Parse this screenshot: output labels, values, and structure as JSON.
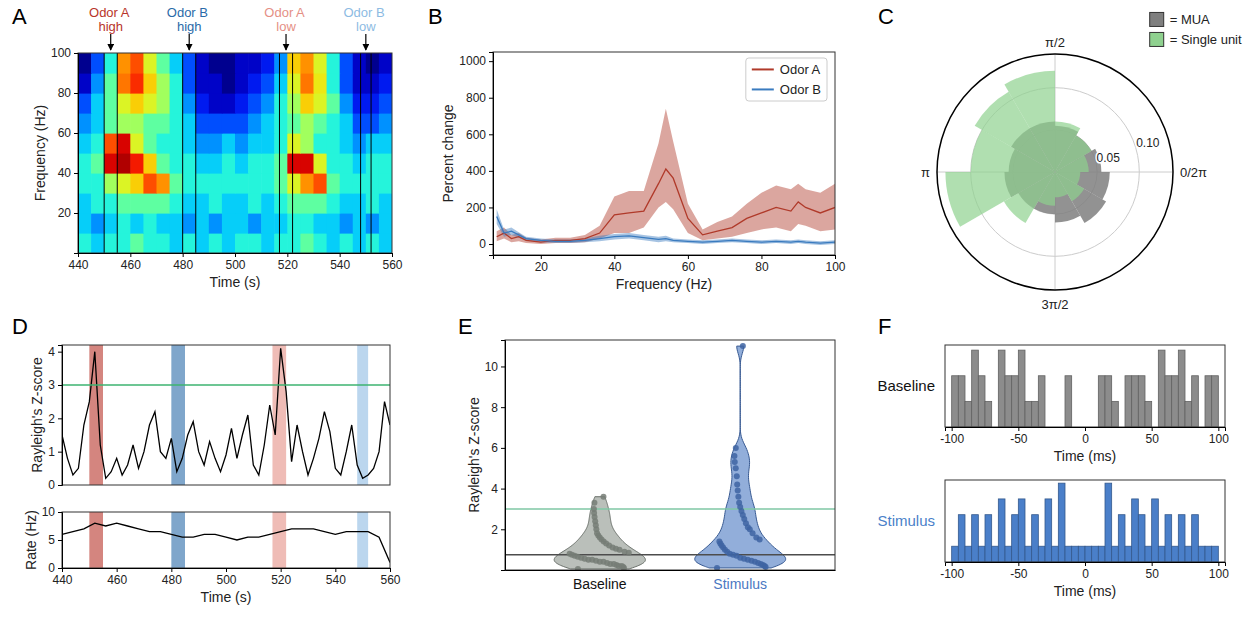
{
  "chart_data": [
    {
      "type": "heatmap",
      "panel_label": "A",
      "x_label": "Time (s)",
      "y_label": "Frequency (Hz)",
      "color": "jet",
      "x_bins": [
        440,
        445,
        450,
        455,
        460,
        465,
        470,
        475,
        480,
        485,
        490,
        495,
        500,
        505,
        510,
        515,
        520,
        525,
        530,
        535,
        540,
        545,
        550,
        555,
        560
      ],
      "y_bins": [
        0,
        10,
        20,
        30,
        40,
        50,
        60,
        70,
        80,
        90,
        100
      ],
      "cells": [
        [
          0.45,
          0.4,
          0.45,
          0.45,
          0.5,
          0.45,
          0.45,
          0.4,
          0.45,
          0.4,
          0.45,
          0.4,
          0.45,
          0.45,
          0.4,
          0.45,
          0.45,
          0.5,
          0.45,
          0.4,
          0.45,
          0.4,
          0.45,
          0.4
        ],
        [
          0.4,
          0.35,
          0.4,
          0.45,
          0.4,
          0.45,
          0.4,
          0.4,
          0.35,
          0.4,
          0.35,
          0.4,
          0.4,
          0.35,
          0.4,
          0.4,
          0.45,
          0.45,
          0.4,
          0.4,
          0.35,
          0.4,
          0.35,
          0.4
        ],
        [
          0.4,
          0.45,
          0.45,
          0.5,
          0.5,
          0.5,
          0.5,
          0.45,
          0.4,
          0.4,
          0.45,
          0.4,
          0.4,
          0.45,
          0.4,
          0.45,
          0.5,
          0.5,
          0.5,
          0.45,
          0.4,
          0.4,
          0.45,
          0.4
        ],
        [
          0.45,
          0.45,
          0.55,
          0.6,
          0.65,
          0.75,
          0.7,
          0.5,
          0.45,
          0.45,
          0.45,
          0.45,
          0.45,
          0.45,
          0.45,
          0.5,
          0.6,
          0.7,
          0.75,
          0.5,
          0.45,
          0.45,
          0.45,
          0.45
        ],
        [
          0.45,
          0.5,
          0.85,
          0.9,
          0.8,
          0.65,
          0.5,
          0.45,
          0.45,
          0.4,
          0.4,
          0.45,
          0.4,
          0.45,
          0.45,
          0.5,
          0.85,
          0.85,
          0.6,
          0.45,
          0.45,
          0.4,
          0.45,
          0.45
        ],
        [
          0.4,
          0.45,
          0.75,
          0.85,
          0.6,
          0.5,
          0.45,
          0.45,
          0.4,
          0.35,
          0.35,
          0.4,
          0.35,
          0.4,
          0.4,
          0.45,
          0.6,
          0.55,
          0.45,
          0.45,
          0.4,
          0.35,
          0.4,
          0.4
        ],
        [
          0.35,
          0.4,
          0.5,
          0.55,
          0.55,
          0.5,
          0.5,
          0.45,
          0.4,
          0.3,
          0.3,
          0.3,
          0.3,
          0.35,
          0.4,
          0.45,
          0.5,
          0.55,
          0.5,
          0.45,
          0.4,
          0.3,
          0.3,
          0.35
        ],
        [
          0.3,
          0.4,
          0.5,
          0.6,
          0.65,
          0.6,
          0.55,
          0.45,
          0.35,
          0.25,
          0.2,
          0.2,
          0.25,
          0.3,
          0.35,
          0.45,
          0.55,
          0.65,
          0.6,
          0.5,
          0.35,
          0.25,
          0.25,
          0.3
        ],
        [
          0.2,
          0.35,
          0.5,
          0.72,
          0.78,
          0.65,
          0.55,
          0.45,
          0.3,
          0.2,
          0.2,
          0.15,
          0.2,
          0.25,
          0.3,
          0.4,
          0.6,
          0.72,
          0.62,
          0.45,
          0.3,
          0.2,
          0.2,
          0.25
        ],
        [
          0.15,
          0.3,
          0.45,
          0.7,
          0.75,
          0.6,
          0.5,
          0.4,
          0.3,
          0.2,
          0.15,
          0.15,
          0.2,
          0.2,
          0.25,
          0.35,
          0.65,
          0.7,
          0.6,
          0.45,
          0.3,
          0.2,
          0.15,
          0.2
        ]
      ],
      "xlim": [
        440,
        560
      ],
      "xticks": [
        440,
        460,
        480,
        500,
        520,
        540,
        560
      ],
      "ylim": [
        0,
        100
      ],
      "yticks": [
        20,
        40,
        60,
        80,
        100
      ],
      "events": [
        450,
        455,
        480,
        485,
        517,
        522,
        548,
        552
      ],
      "annotations": [
        {
          "text": "Odor A high",
          "x": 452.5,
          "color": "#b8342a"
        },
        {
          "text": "Odor B high",
          "x": 482.5,
          "color": "#2a6aa8"
        },
        {
          "text": "Odor A low",
          "x": 519.5,
          "color": "#e58f85"
        },
        {
          "text": "Odor B low",
          "x": 550,
          "color": "#8dbbe3"
        }
      ]
    },
    {
      "type": "line",
      "panel_label": "B",
      "x_label": "Frequency (Hz)",
      "y_label": "Percent change",
      "x": [
        8,
        10,
        12,
        14,
        16,
        20,
        24,
        28,
        32,
        36,
        40,
        44,
        48,
        52,
        54,
        56,
        60,
        64,
        68,
        72,
        76,
        80,
        84,
        88,
        90,
        92,
        96,
        100
      ],
      "series": [
        {
          "name": "Odor A",
          "color": "#b03a2a",
          "values": [
            40,
            60,
            30,
            40,
            20,
            10,
            20,
            20,
            30,
            60,
            160,
            170,
            180,
            330,
            410,
            360,
            140,
            50,
            70,
            90,
            140,
            170,
            200,
            180,
            230,
            200,
            170,
            200
          ],
          "lower": [
            15,
            30,
            10,
            15,
            5,
            0,
            5,
            5,
            10,
            30,
            60,
            60,
            90,
            200,
            230,
            190,
            60,
            20,
            30,
            40,
            60,
            80,
            90,
            70,
            110,
            100,
            70,
            80
          ],
          "upper": [
            70,
            90,
            50,
            60,
            35,
            25,
            35,
            35,
            50,
            100,
            260,
            290,
            290,
            550,
            740,
            560,
            220,
            80,
            120,
            150,
            220,
            280,
            320,
            300,
            330,
            300,
            280,
            330
          ]
        },
        {
          "name": "Odor B",
          "color": "#3a7bbf",
          "values": [
            150,
            60,
            70,
            50,
            30,
            20,
            15,
            15,
            20,
            30,
            40,
            45,
            35,
            25,
            30,
            20,
            15,
            10,
            15,
            20,
            15,
            10,
            15,
            10,
            15,
            10,
            5,
            10
          ],
          "lower": [
            110,
            40,
            50,
            35,
            20,
            10,
            5,
            5,
            10,
            15,
            25,
            30,
            20,
            10,
            15,
            10,
            5,
            0,
            5,
            10,
            5,
            0,
            5,
            0,
            5,
            0,
            -5,
            0
          ],
          "upper": [
            190,
            80,
            90,
            65,
            40,
            30,
            25,
            25,
            30,
            45,
            55,
            60,
            50,
            40,
            45,
            30,
            25,
            20,
            25,
            30,
            25,
            20,
            25,
            20,
            25,
            20,
            15,
            20
          ]
        }
      ],
      "xlim": [
        7,
        100
      ],
      "xticks": [
        20,
        40,
        60,
        80,
        100
      ],
      "ylim": [
        -60,
        1050
      ],
      "yticks": [
        0,
        200,
        400,
        600,
        800,
        1000
      ],
      "legend": "top-right"
    },
    {
      "type": "polar_bar",
      "panel_label": "C",
      "bins": [
        0,
        0.5236,
        1.0472,
        1.5708,
        2.0944,
        2.618,
        3.1416,
        3.6652,
        4.1888,
        4.7124,
        5.236,
        5.7596,
        6.2832
      ],
      "series": [
        {
          "name": "= MUA",
          "color": "#7f7f7f",
          "values": [
            0.055,
            0.05,
            0.055,
            0.06,
            0.06,
            0.055,
            0.06,
            0.05,
            0.05,
            0.06,
            0.07,
            0.065
          ]
        },
        {
          "name": "= Single unit",
          "color": "#8fd18f",
          "values": [
            0.04,
            0.05,
            0.06,
            0.12,
            0.11,
            0.1,
            0.13,
            0.07,
            0.04,
            0.03,
            0.04,
            0.03
          ]
        }
      ],
      "xlim": [
        0,
        6.2832
      ],
      "xticks": [
        {
          "value": 0,
          "label": "0/2π"
        },
        {
          "value": 1.5708,
          "label": "π/2"
        },
        {
          "value": 3.1416,
          "label": "π"
        },
        {
          "value": 4.7124,
          "label": "3π/2"
        }
      ],
      "ylim": [
        0,
        0.14
      ],
      "yticks": [
        0.05,
        {
          "value": 0.1,
          "label": "0.10"
        }
      ],
      "legend": "top-right"
    },
    {
      "type": "line",
      "panel_label": "D",
      "y_label": "Rayleigh's Z-score",
      "color": "#000000",
      "x": [
        440,
        442,
        444,
        446,
        448,
        450,
        452,
        454,
        456,
        458,
        460,
        462,
        464,
        466,
        468,
        470,
        472,
        474,
        476,
        478,
        480,
        482,
        484,
        486,
        488,
        490,
        492,
        494,
        496,
        498,
        500,
        502,
        504,
        506,
        508,
        510,
        512,
        514,
        516,
        518,
        520,
        522,
        524,
        526,
        528,
        530,
        532,
        534,
        536,
        538,
        540,
        542,
        544,
        546,
        548,
        550,
        552,
        554,
        556,
        558,
        560
      ],
      "values": [
        1.5,
        0.8,
        0.3,
        0.5,
        1.8,
        2.5,
        4,
        1.2,
        0.2,
        0.4,
        0.8,
        0.3,
        0.6,
        1.2,
        0.5,
        1,
        1.8,
        2.2,
        1,
        0.8,
        1.4,
        0.4,
        0.8,
        1.5,
        1.9,
        1,
        0.6,
        1.3,
        0.8,
        0.4,
        0.9,
        1.7,
        0.8,
        1.5,
        2.1,
        0.6,
        0.3,
        1.2,
        2.4,
        1.5,
        4.1,
        2.8,
        0.7,
        1.8,
        1,
        0.3,
        0.8,
        1.4,
        2.2,
        1.6,
        0.5,
        0.3,
        1,
        1.8,
        0.6,
        0.2,
        0.3,
        0.5,
        1,
        2.5,
        1.8
      ],
      "shaded": [
        {
          "x0": 450,
          "x1": 455,
          "color": "#b8342a"
        },
        {
          "x0": 480,
          "x1": 485,
          "color": "#2a6aa8"
        },
        {
          "x0": 517,
          "x1": 522,
          "color": "#e58f85"
        },
        {
          "x0": 548,
          "x1": 552,
          "color": "#8dbbe3"
        }
      ],
      "reference_lines": [
        {
          "y": 3,
          "color": "#3cb371"
        }
      ],
      "xlim": [
        440,
        560
      ],
      "ylim": [
        0,
        4.2
      ],
      "yticks": [
        0,
        1,
        2,
        3,
        4
      ],
      "tick_labels": "y"
    },
    {
      "type": "line",
      "x_label": "Time (s)",
      "y_label": "Rate (Hz)",
      "color": "#000000",
      "x": [
        440,
        444,
        448,
        452,
        456,
        460,
        464,
        468,
        472,
        476,
        480,
        484,
        488,
        492,
        496,
        500,
        504,
        508,
        512,
        516,
        520,
        524,
        528,
        532,
        536,
        540,
        544,
        548,
        552,
        556,
        560
      ],
      "values": [
        6,
        6.5,
        7,
        8,
        7.5,
        8,
        7.5,
        7,
        6.5,
        6.5,
        6,
        5.5,
        5.5,
        6,
        6,
        5.5,
        5,
        5.5,
        5.5,
        6,
        6.5,
        7,
        7,
        7,
        6.5,
        6,
        6.5,
        6.5,
        6.5,
        5.5,
        1
      ],
      "shaded": [
        {
          "x0": 450,
          "x1": 455,
          "color": "#b8342a"
        },
        {
          "x0": 480,
          "x1": 485,
          "color": "#2a6aa8"
        },
        {
          "x0": 517,
          "x1": 522,
          "color": "#e58f85"
        },
        {
          "x0": 548,
          "x1": 552,
          "color": "#8dbbe3"
        }
      ],
      "xlim": [
        440,
        560
      ],
      "xticks": [
        440,
        460,
        480,
        500,
        520,
        540,
        560
      ],
      "ylim": [
        0,
        10
      ],
      "yticks": [
        0,
        5,
        10
      ]
    },
    {
      "type": "violin",
      "panel_label": "E",
      "y_label": "Rayleigh's Z-score",
      "categories": [
        "Baseline",
        "Stimulus"
      ],
      "colors": [
        "#8c948c",
        "#4a78c2"
      ],
      "values": [
        [
          0.05,
          0.1,
          0.15,
          0.2,
          0.2,
          0.25,
          0.3,
          0.3,
          0.35,
          0.4,
          0.4,
          0.45,
          0.5,
          0.5,
          0.55,
          0.6,
          0.65,
          0.7,
          0.75,
          0.8,
          0.85,
          0.9,
          1,
          1.05,
          1.1,
          1.2,
          1.3,
          1.4,
          1.5,
          1.6,
          1.7,
          1.8,
          2,
          2.2,
          2.4,
          2.6,
          2.8,
          3,
          3.3,
          3.6
        ],
        [
          0.1,
          0.15,
          0.2,
          0.25,
          0.3,
          0.35,
          0.4,
          0.45,
          0.5,
          0.55,
          0.6,
          0.7,
          0.75,
          0.8,
          0.9,
          1,
          1.1,
          1.2,
          1.3,
          1.4,
          1.5,
          1.6,
          1.8,
          2,
          2.1,
          2.3,
          2.5,
          2.7,
          2.9,
          3.1,
          3.3,
          3.6,
          3.9,
          4.2,
          4.6,
          5,
          5.3,
          5.6,
          6,
          11
        ]
      ],
      "reference_lines": [
        {
          "y": 3,
          "color": "#7fc7a4"
        },
        {
          "y": 0.75,
          "color": "#4d4d4d"
        }
      ],
      "ylim": [
        0,
        11.3
      ],
      "yticks": [
        2,
        4,
        6,
        8,
        10
      ]
    },
    {
      "type": "histogram",
      "panel_label": "F",
      "y_label": "Baseline",
      "x_label": "Time (ms)",
      "color": "#8c8c8c",
      "bins": [
        -100,
        -95,
        -90,
        -85,
        -80,
        -75,
        -70,
        -65,
        -60,
        -55,
        -50,
        -45,
        -40,
        -35,
        -30,
        -25,
        -20,
        -15,
        -10,
        -5,
        0,
        5,
        10,
        15,
        20,
        25,
        30,
        35,
        40,
        45,
        50,
        55,
        60,
        65,
        70,
        75,
        80,
        85,
        90,
        95,
        100
      ],
      "values": [
        2,
        2,
        1,
        3,
        2,
        1,
        0,
        3,
        2,
        2,
        3,
        1,
        1,
        2,
        0,
        0,
        0,
        2,
        0,
        0,
        0,
        0,
        2,
        2,
        1,
        0,
        2,
        2,
        2,
        1,
        0,
        3,
        2,
        2,
        3,
        1,
        2,
        0,
        2,
        2
      ],
      "xlim": [
        -105,
        105
      ],
      "xticks": [
        -100,
        -50,
        0,
        50,
        100
      ],
      "ylim": [
        0,
        3.2
      ],
      "tick_labels": "x"
    },
    {
      "type": "histogram",
      "y_label": "Stimulus",
      "x_label": "Time (ms)",
      "color": "#4a7fc9",
      "bins": [
        -100,
        -95,
        -90,
        -85,
        -80,
        -75,
        -70,
        -65,
        -60,
        -55,
        -50,
        -45,
        -40,
        -35,
        -30,
        -25,
        -20,
        -15,
        -10,
        -5,
        0,
        5,
        10,
        15,
        20,
        25,
        30,
        35,
        40,
        45,
        50,
        55,
        60,
        65,
        70,
        75,
        80,
        85,
        90,
        95,
        100
      ],
      "values": [
        1,
        3,
        1,
        3,
        1,
        3,
        1,
        4,
        1,
        3,
        4,
        1,
        3,
        1,
        4,
        1,
        5,
        1,
        1,
        1,
        1,
        1,
        1,
        5,
        1,
        3,
        1,
        4,
        3,
        1,
        4,
        1,
        3,
        1,
        3,
        1,
        3,
        1,
        1,
        1
      ],
      "xlim": [
        -105,
        105
      ],
      "xticks": [
        -100,
        -50,
        0,
        50,
        100
      ],
      "ylim": [
        0,
        5.2
      ],
      "tick_labels": "x"
    }
  ]
}
